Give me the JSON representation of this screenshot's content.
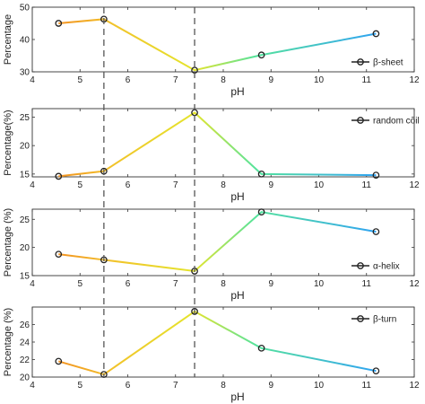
{
  "chart_data": {
    "type": "line",
    "shared_x": {
      "label": "pH",
      "xlim": [
        4,
        12
      ],
      "ticks": [
        "4",
        "5",
        "6",
        "7",
        "8",
        "9",
        "10",
        "11",
        "12"
      ],
      "x": [
        4.55,
        5.5,
        7.4,
        8.8,
        11.2
      ]
    },
    "vertical_reference_lines_x": [
      5.5,
      7.4
    ],
    "panels": [
      {
        "ylabel": "Percentage",
        "ylim": [
          30,
          50
        ],
        "yticks": [
          "30",
          "40",
          "50"
        ],
        "legend": "β-sheet",
        "legend_position": "bottom-right",
        "values": [
          45,
          46.3,
          30.5,
          35.2,
          41.8
        ]
      },
      {
        "ylabel": "Percentage(%)",
        "ylim": [
          14.5,
          26.5
        ],
        "yticks": [
          "15",
          "20",
          "25"
        ],
        "legend": "random coil",
        "legend_position": "top-right",
        "values": [
          14.6,
          15.5,
          25.8,
          15,
          14.8
        ]
      },
      {
        "ylabel": "Percentage (%)",
        "ylim": [
          15,
          26.8
        ],
        "yticks": [
          "15",
          "20",
          "25"
        ],
        "legend": "α-helix",
        "legend_position": "bottom-right",
        "values": [
          18.8,
          17.8,
          15.8,
          26.3,
          22.8
        ]
      },
      {
        "ylabel": "Percentage (%)",
        "ylim": [
          20,
          28
        ],
        "yticks": [
          "20",
          "22",
          "24",
          "26"
        ],
        "legend": "β-turn",
        "legend_position": "top-right",
        "values": [
          21.8,
          20.3,
          27.5,
          23.3,
          20.7
        ]
      }
    ],
    "colors": {
      "point_stroke": "#222222",
      "gradient_orange": "#f39221",
      "gradient_yellow": "#e4e52c",
      "gradient_green": "#55e39b",
      "gradient_blue": "#2fa3f2",
      "dash_line": "#555555",
      "axis": "#333333"
    }
  }
}
